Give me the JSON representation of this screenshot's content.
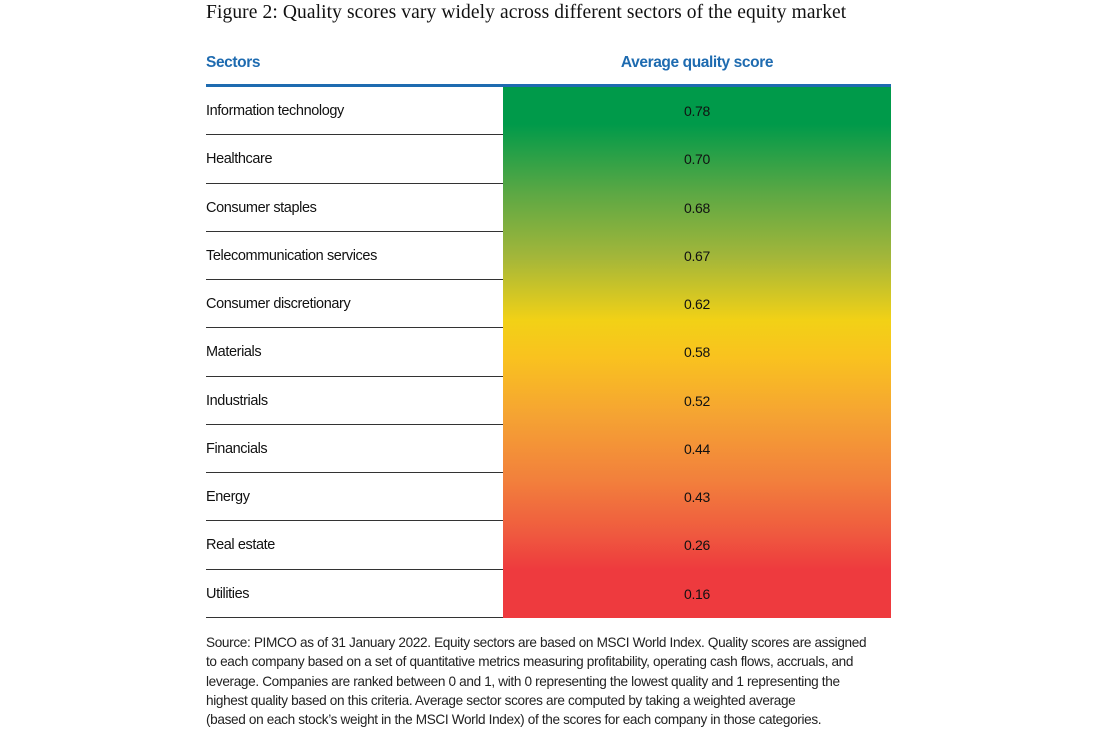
{
  "title": "Figure 2: Quality scores vary widely across different sectors of the equity market",
  "table": {
    "header": [
      "Sectors",
      "Average quality score"
    ],
    "rows": [
      [
        "Information technology",
        "0.78"
      ],
      [
        "Healthcare",
        "0.70"
      ],
      [
        "Consumer staples",
        "0.68"
      ],
      [
        "Telecommunication services",
        "0.67"
      ],
      [
        "Consumer discretionary",
        "0.62"
      ],
      [
        "Materials",
        "0.58"
      ],
      [
        "Industrials",
        "0.52"
      ],
      [
        "Financials",
        "0.44"
      ],
      [
        "Energy",
        "0.43"
      ],
      [
        "Real estate",
        "0.26"
      ],
      [
        "Utilities",
        "0.16"
      ]
    ]
  },
  "footnote": [
    "Source: PIMCO as of 31 January 2022. Equity sectors are based on MSCI World Index. Quality scores are assigned",
    "to each company based on a set of quantitative metrics measuring profitability, operating cash flows, accruals, and",
    "leverage. Companies are ranked between 0 and 1, with 0 representing the lowest quality and 1 representing the",
    "highest quality based on this criteria. Average sector scores are computed by taking a weighted average",
    "(based on each stock’s weight in the MSCI World Index) of the scores for each company in those categories."
  ]
}
